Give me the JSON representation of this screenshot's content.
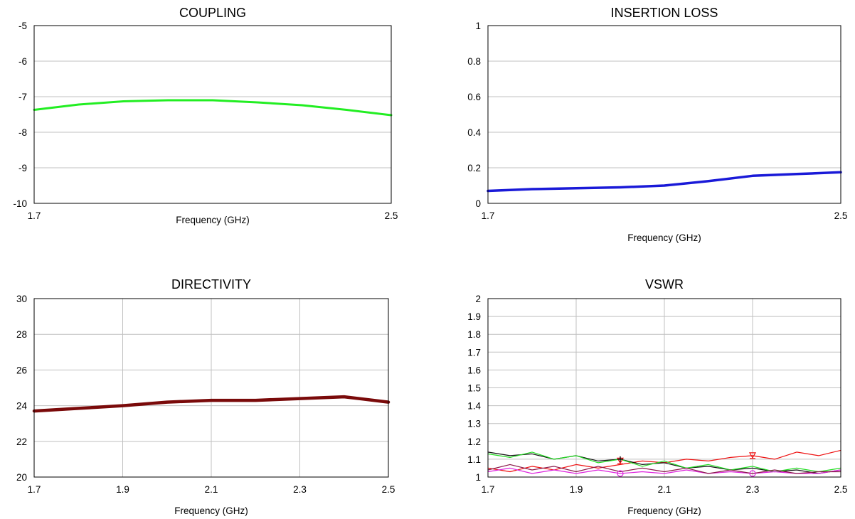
{
  "chart_data": [
    {
      "type": "line",
      "title": "COUPLING",
      "xlabel": "Frequency (GHz)",
      "ylabel": "",
      "xlim": [
        1.7,
        2.5
      ],
      "ylim": [
        -10,
        -5
      ],
      "xticks": [
        "1.7",
        "2.5"
      ],
      "yticks": [
        "-5",
        "-6",
        "-7",
        "-8",
        "-9",
        "-10"
      ],
      "grid": "horizontal",
      "series": [
        {
          "color": "#22ee22",
          "x": [
            1.7,
            1.8,
            1.9,
            2.0,
            2.1,
            2.2,
            2.3,
            2.4,
            2.5
          ],
          "y": [
            -7.37,
            -7.22,
            -7.13,
            -7.1,
            -7.1,
            -7.16,
            -7.24,
            -7.37,
            -7.52
          ]
        }
      ]
    },
    {
      "type": "line",
      "title": "INSERTION LOSS",
      "xlabel": "Frequency (GHz)",
      "ylabel": "",
      "xlim": [
        1.7,
        2.5
      ],
      "ylim": [
        0,
        1
      ],
      "xticks": [
        "1.7",
        "2.5"
      ],
      "yticks": [
        "1",
        "0.8",
        "0.6",
        "0.4",
        "0.2",
        "0"
      ],
      "grid": "horizontal",
      "series": [
        {
          "color": "#1a1ad8",
          "x": [
            1.7,
            1.8,
            1.9,
            2.0,
            2.1,
            2.2,
            2.3,
            2.4,
            2.5
          ],
          "y": [
            0.07,
            0.08,
            0.085,
            0.09,
            0.1,
            0.125,
            0.155,
            0.165,
            0.175
          ]
        }
      ]
    },
    {
      "type": "line",
      "title": "DIRECTIVITY",
      "xlabel": "Frequency (GHz)",
      "ylabel": "",
      "xlim": [
        1.7,
        2.5
      ],
      "ylim": [
        20,
        30
      ],
      "xticks": [
        "1.7",
        "1.9",
        "2.1",
        "2.3",
        "2.5"
      ],
      "yticks": [
        "30",
        "28",
        "26",
        "24",
        "22",
        "20"
      ],
      "grid": "both",
      "series": [
        {
          "color": "#7a0a0a",
          "x": [
            1.7,
            1.8,
            1.9,
            2.0,
            2.1,
            2.2,
            2.3,
            2.4,
            2.5
          ],
          "y": [
            23.7,
            23.85,
            24.0,
            24.2,
            24.3,
            24.3,
            24.4,
            24.5,
            24.2
          ]
        }
      ]
    },
    {
      "type": "line",
      "title": "VSWR",
      "xlabel": "Frequency (GHz)",
      "ylabel": "",
      "xlim": [
        1.7,
        2.5
      ],
      "ylim": [
        1,
        2
      ],
      "xticks": [
        "1.7",
        "1.9",
        "2.1",
        "2.3",
        "2.5"
      ],
      "yticks": [
        "2",
        "1.9",
        "1.8",
        "1.7",
        "1.6",
        "1.5",
        "1.4",
        "1.3",
        "1.2",
        "1.1",
        "1"
      ],
      "grid": "both",
      "series": [
        {
          "color": "#ee1111",
          "x": [
            1.7,
            1.75,
            1.8,
            1.85,
            1.9,
            1.95,
            2.0,
            2.05,
            2.1,
            2.15,
            2.2,
            2.25,
            2.3,
            2.35,
            2.4,
            2.45,
            2.5
          ],
          "y": [
            1.05,
            1.03,
            1.06,
            1.04,
            1.07,
            1.05,
            1.07,
            1.09,
            1.08,
            1.1,
            1.09,
            1.11,
            1.12,
            1.1,
            1.14,
            1.12,
            1.15
          ]
        },
        {
          "color": "#111111",
          "x": [
            1.7,
            1.75,
            1.8,
            1.85,
            1.9,
            1.95,
            2.0,
            2.05,
            2.1,
            2.15,
            2.2,
            2.25,
            2.3,
            2.35,
            2.4,
            2.45,
            2.5
          ],
          "y": [
            1.14,
            1.12,
            1.13,
            1.1,
            1.12,
            1.09,
            1.1,
            1.07,
            1.08,
            1.05,
            1.06,
            1.04,
            1.05,
            1.03,
            1.04,
            1.02,
            1.04
          ]
        },
        {
          "color": "#22dd22",
          "x": [
            1.7,
            1.75,
            1.8,
            1.85,
            1.9,
            1.95,
            2.0,
            2.05,
            2.1,
            2.15,
            2.2,
            2.25,
            2.3,
            2.35,
            2.4,
            2.45,
            2.5
          ],
          "y": [
            1.13,
            1.11,
            1.14,
            1.1,
            1.12,
            1.08,
            1.1,
            1.06,
            1.09,
            1.05,
            1.07,
            1.04,
            1.06,
            1.03,
            1.05,
            1.03,
            1.05
          ]
        },
        {
          "color": "#dd22dd",
          "x": [
            1.7,
            1.75,
            1.8,
            1.85,
            1.9,
            1.95,
            2.0,
            2.05,
            2.1,
            2.15,
            2.2,
            2.25,
            2.3,
            2.35,
            2.4,
            2.45,
            2.5
          ],
          "y": [
            1.03,
            1.05,
            1.02,
            1.04,
            1.02,
            1.04,
            1.02,
            1.03,
            1.02,
            1.04,
            1.02,
            1.03,
            1.02,
            1.03,
            1.02,
            1.02,
            1.04
          ]
        },
        {
          "color": "#8a1a4a",
          "x": [
            1.7,
            1.75,
            1.8,
            1.85,
            1.9,
            1.95,
            2.0,
            2.05,
            2.1,
            2.15,
            2.2,
            2.25,
            2.3,
            2.35,
            2.4,
            2.45,
            2.5
          ],
          "y": [
            1.04,
            1.07,
            1.04,
            1.06,
            1.03,
            1.06,
            1.03,
            1.05,
            1.03,
            1.05,
            1.02,
            1.04,
            1.02,
            1.04,
            1.02,
            1.03,
            1.03
          ]
        }
      ],
      "markers": [
        {
          "x": 2.0,
          "y": 1.09,
          "color": "#ee1111",
          "shape": "triangle-down"
        },
        {
          "x": 2.0,
          "y": 1.1,
          "color": "#111111",
          "shape": "plus"
        },
        {
          "x": 2.0,
          "y": 1.02,
          "color": "#dd22dd",
          "shape": "circle"
        },
        {
          "x": 2.3,
          "y": 1.12,
          "color": "#ee1111",
          "shape": "triangle-down"
        },
        {
          "x": 2.3,
          "y": 1.02,
          "color": "#dd22dd",
          "shape": "circle"
        }
      ]
    }
  ]
}
